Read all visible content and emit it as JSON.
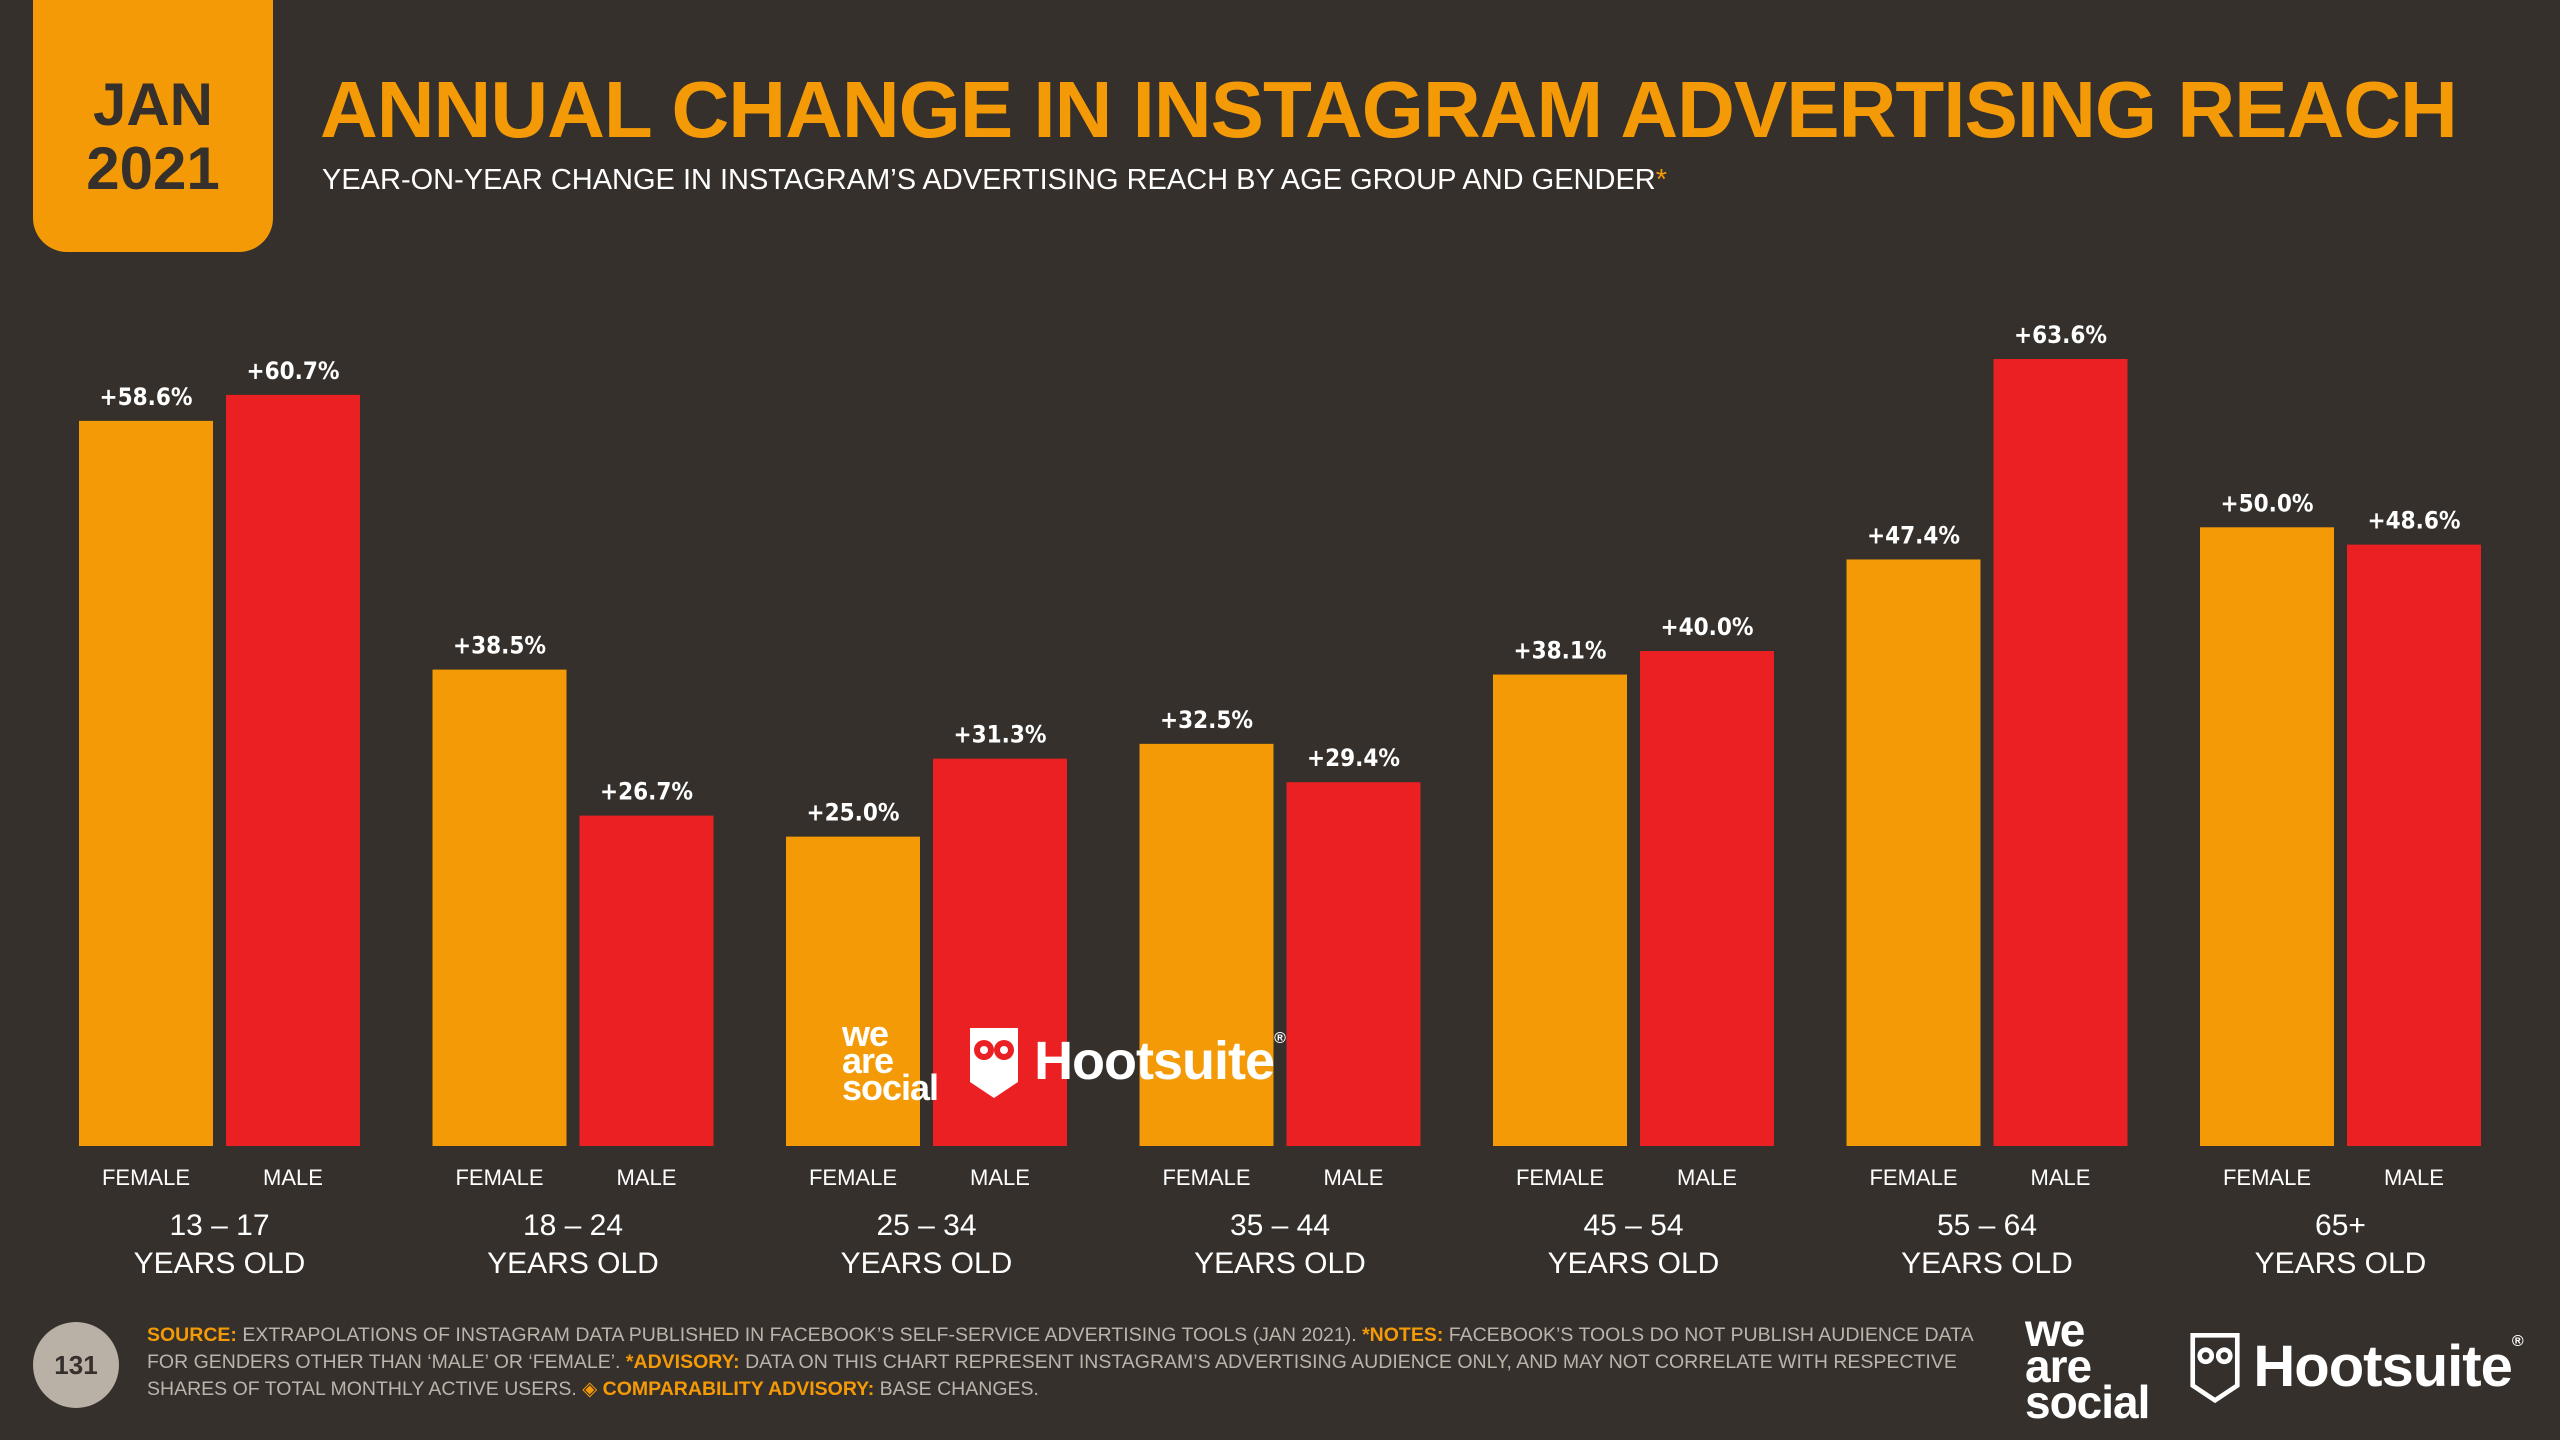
{
  "header": {
    "month": "JAN",
    "year": "2021",
    "title": "ANNUAL CHANGE IN INSTAGRAM ADVERTISING REACH",
    "subtitle": "YEAR-ON-YEAR CHANGE IN INSTAGRAM’S ADVERTISING REACH BY AGE GROUP AND GENDER",
    "subtitle_mark": "*"
  },
  "chart_data": {
    "type": "bar",
    "title": "ANNUAL CHANGE IN INSTAGRAM ADVERTISING REACH",
    "categories": [
      {
        "range": "13 – 17",
        "unit": "YEARS OLD"
      },
      {
        "range": "18 – 24",
        "unit": "YEARS OLD"
      },
      {
        "range": "25 – 34",
        "unit": "YEARS OLD"
      },
      {
        "range": "35 – 44",
        "unit": "YEARS OLD"
      },
      {
        "range": "45 – 54",
        "unit": "YEARS OLD"
      },
      {
        "range": "55 – 64",
        "unit": "YEARS OLD"
      },
      {
        "range": "65+",
        "unit": "YEARS OLD"
      }
    ],
    "series": [
      {
        "name": "FEMALE",
        "color": "#f49a06",
        "values": [
          58.6,
          38.5,
          25.0,
          32.5,
          38.1,
          47.4,
          50.0
        ],
        "labels": [
          "+58.6%",
          "+38.5%",
          "+25.0%",
          "+32.5%",
          "+38.1%",
          "+47.4%",
          "+50.0%"
        ]
      },
      {
        "name": "MALE",
        "color": "#ea2022",
        "values": [
          60.7,
          26.7,
          31.3,
          29.4,
          40.0,
          63.6,
          48.6
        ],
        "labels": [
          "+60.7%",
          "+26.7%",
          "+31.3%",
          "+29.4%",
          "+40.0%",
          "+63.6%",
          "+48.6%"
        ]
      }
    ],
    "ylim": [
      0,
      63.6
    ],
    "xlabel": "",
    "ylabel": ""
  },
  "watermark": {
    "was_line1": "we",
    "was_line2": "are",
    "was_line3": "social",
    "hootsuite": "Hootsuite",
    "reg": "®"
  },
  "footer": {
    "page_number": "131",
    "source_key": "SOURCE:",
    "source_text": " EXTRAPOLATIONS OF INSTAGRAM DATA PUBLISHED IN FACEBOOK’S SELF-SERVICE ADVERTISING TOOLS (JAN 2021). ",
    "notes_key": "*NOTES:",
    "notes_text": " FACEBOOK’S TOOLS DO NOT PUBLISH AUDIENCE DATA FOR GENDERS OTHER THAN ‘MALE’ OR ‘FEMALE’. ",
    "advisory_key": "*ADVISORY:",
    "advisory_text": " DATA ON THIS CHART REPRESENT INSTAGRAM’S ADVERTISING AUDIENCE ONLY, AND MAY NOT CORRELATE WITH RESPECTIVE SHARES OF TOTAL MONTHLY ACTIVE USERS. ",
    "diamond": "◈",
    "comparability_key": " COMPARABILITY ADVISORY:",
    "comparability_text": " BASE CHANGES."
  },
  "colors": {
    "background": "#35302c",
    "accent": "#f49a06",
    "male": "#ea2022"
  }
}
